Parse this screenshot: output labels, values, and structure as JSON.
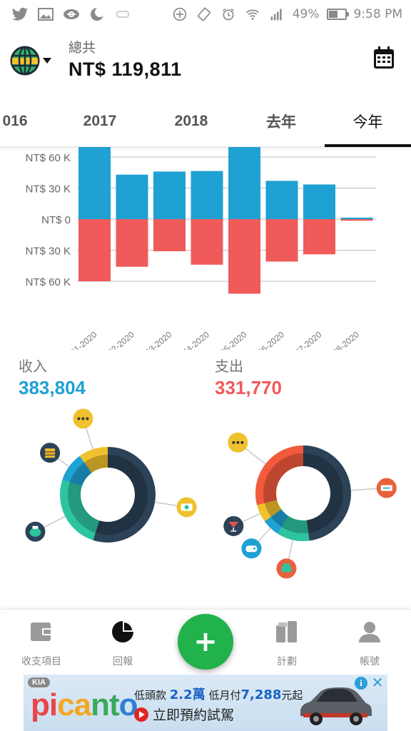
{
  "status_bar": {
    "battery": "49%",
    "time": "9:58 PM",
    "icons_left": [
      "twitter-icon",
      "gallery-icon",
      "link-icon",
      "moon-icon",
      "edge-icon"
    ],
    "icons_right": [
      "add-circle-icon",
      "rotate-icon",
      "alarm-icon",
      "wifi-icon",
      "signal-icon",
      "battery-icon"
    ]
  },
  "header": {
    "total_label": "總共",
    "total_value": "NT$ 119,811"
  },
  "tabs": [
    {
      "label": "016",
      "active": false
    },
    {
      "label": "2017",
      "active": false
    },
    {
      "label": "2018",
      "active": false
    },
    {
      "label": "去年",
      "active": false
    },
    {
      "label": "今年",
      "active": true
    }
  ],
  "chart_data": {
    "type": "bar",
    "categories": [
      "01-2020",
      "02-2020",
      "03-2020",
      "04-2020",
      "05-2020",
      "06-2020",
      "07-2020",
      "08-2020"
    ],
    "series": [
      {
        "values": [
          72000,
          43000,
          46000,
          46500,
          72000,
          37000,
          33500,
          1500
        ],
        "color": "#1fa1d4"
      },
      {
        "values": [
          -60000,
          -46000,
          -31000,
          -44000,
          -72000,
          -41000,
          -34000,
          -1500
        ],
        "color": "#f05a5a"
      }
    ],
    "y_ticks": [
      "NT$ 60 K",
      "NT$ 30 K",
      "NT$ 0",
      "NT$ 30 K",
      "NT$ 60 K"
    ],
    "y_tick_values": [
      60000,
      30000,
      0,
      -30000,
      -60000
    ],
    "ylim": [
      -75000,
      68000
    ],
    "grid": true
  },
  "income": {
    "label": "收入",
    "value": "383,804",
    "color": "#1fa1d4",
    "segments": [
      {
        "value": 55,
        "color": "#2b4257",
        "icon": "money-icon"
      },
      {
        "value": 25,
        "color": "#2ec4a0",
        "icon": "piggy-bank-icon"
      },
      {
        "value": 10,
        "color": "#1fa1d4",
        "icon": "layers-icon"
      },
      {
        "value": 10,
        "color": "#f0c12e",
        "icon": "more-icon"
      }
    ]
  },
  "expense": {
    "label": "支出",
    "value": "331,770",
    "color": "#f05a5a",
    "segments": [
      {
        "value": 48,
        "color": "#2b4257",
        "icon": "transfer-icon"
      },
      {
        "value": 11,
        "color": "#2ec4a0",
        "icon": "phone-icon"
      },
      {
        "value": 6,
        "color": "#1fa1d4",
        "icon": "game-icon"
      },
      {
        "value": 6,
        "color": "#f0c12e",
        "icon": "drink-icon"
      },
      {
        "value": 29,
        "color": "#f25a3c",
        "icon": "more-icon"
      }
    ]
  },
  "bottom_nav": [
    {
      "label": "收支項目",
      "icon": "wallet-icon",
      "active": false
    },
    {
      "label": "回報",
      "icon": "pie-chart-icon",
      "active": true
    },
    {
      "label": "計劃",
      "icon": "plan-icon",
      "active": false
    },
    {
      "label": "帳號",
      "icon": "account-icon",
      "active": false
    }
  ],
  "fab": {
    "label": "+",
    "color": "#22b24c"
  },
  "ad": {
    "brand": "KIA",
    "logo": [
      "pi",
      "ca",
      "nt",
      "o"
    ],
    "line1_prefix": "低頭款 ",
    "line1_value1": "2.2萬",
    "line1_mid": " 低月付",
    "line1_value2": "7,288",
    "line1_suffix": "元起",
    "line2": "立即預約試駕"
  }
}
